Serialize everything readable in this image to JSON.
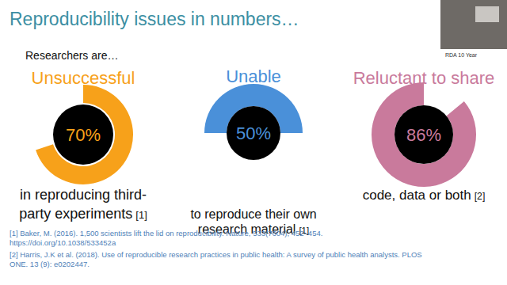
{
  "slide": {
    "title": "Reproducibility issues in numbers…",
    "subtitle": "Researchers are…",
    "overlay_text": "RDA 10 Year",
    "references": [
      [
        "[1] Baker, M. (2016). 1,500 scientists lift the lid on reproducibility. Nature, 533(7604), 452–454.",
        "https://doi.org/10.1038/533452a"
      ],
      [
        "[2] Harris, J.K et al. (2018). Use of reproducible research practices in public health: A survey of public health analysts. PLOS",
        "ONE. 13 (9): e0202447."
      ]
    ]
  },
  "chart_data": [
    {
      "type": "gauge",
      "title": "Unsuccessful",
      "values": [
        70
      ],
      "value_labels": [
        "70%"
      ],
      "ylim": [
        0,
        100
      ],
      "color": "#f7a11a",
      "caption": [
        "in reproducing third-",
        "party experiments"
      ],
      "reference": "[1]"
    },
    {
      "type": "gauge",
      "title": "Unable",
      "values": [
        50
      ],
      "value_labels": [
        "50%"
      ],
      "ylim": [
        0,
        100
      ],
      "color": "#4a90d9",
      "caption": [
        "to reproduce their own",
        "research material"
      ],
      "reference": "[1]"
    },
    {
      "type": "gauge",
      "title": "Reluctant to share",
      "values": [
        86
      ],
      "value_labels": [
        "86%"
      ],
      "ylim": [
        0,
        100
      ],
      "color": "#c97a9c",
      "caption": [
        "code, data or both"
      ],
      "reference": "[2]"
    }
  ]
}
